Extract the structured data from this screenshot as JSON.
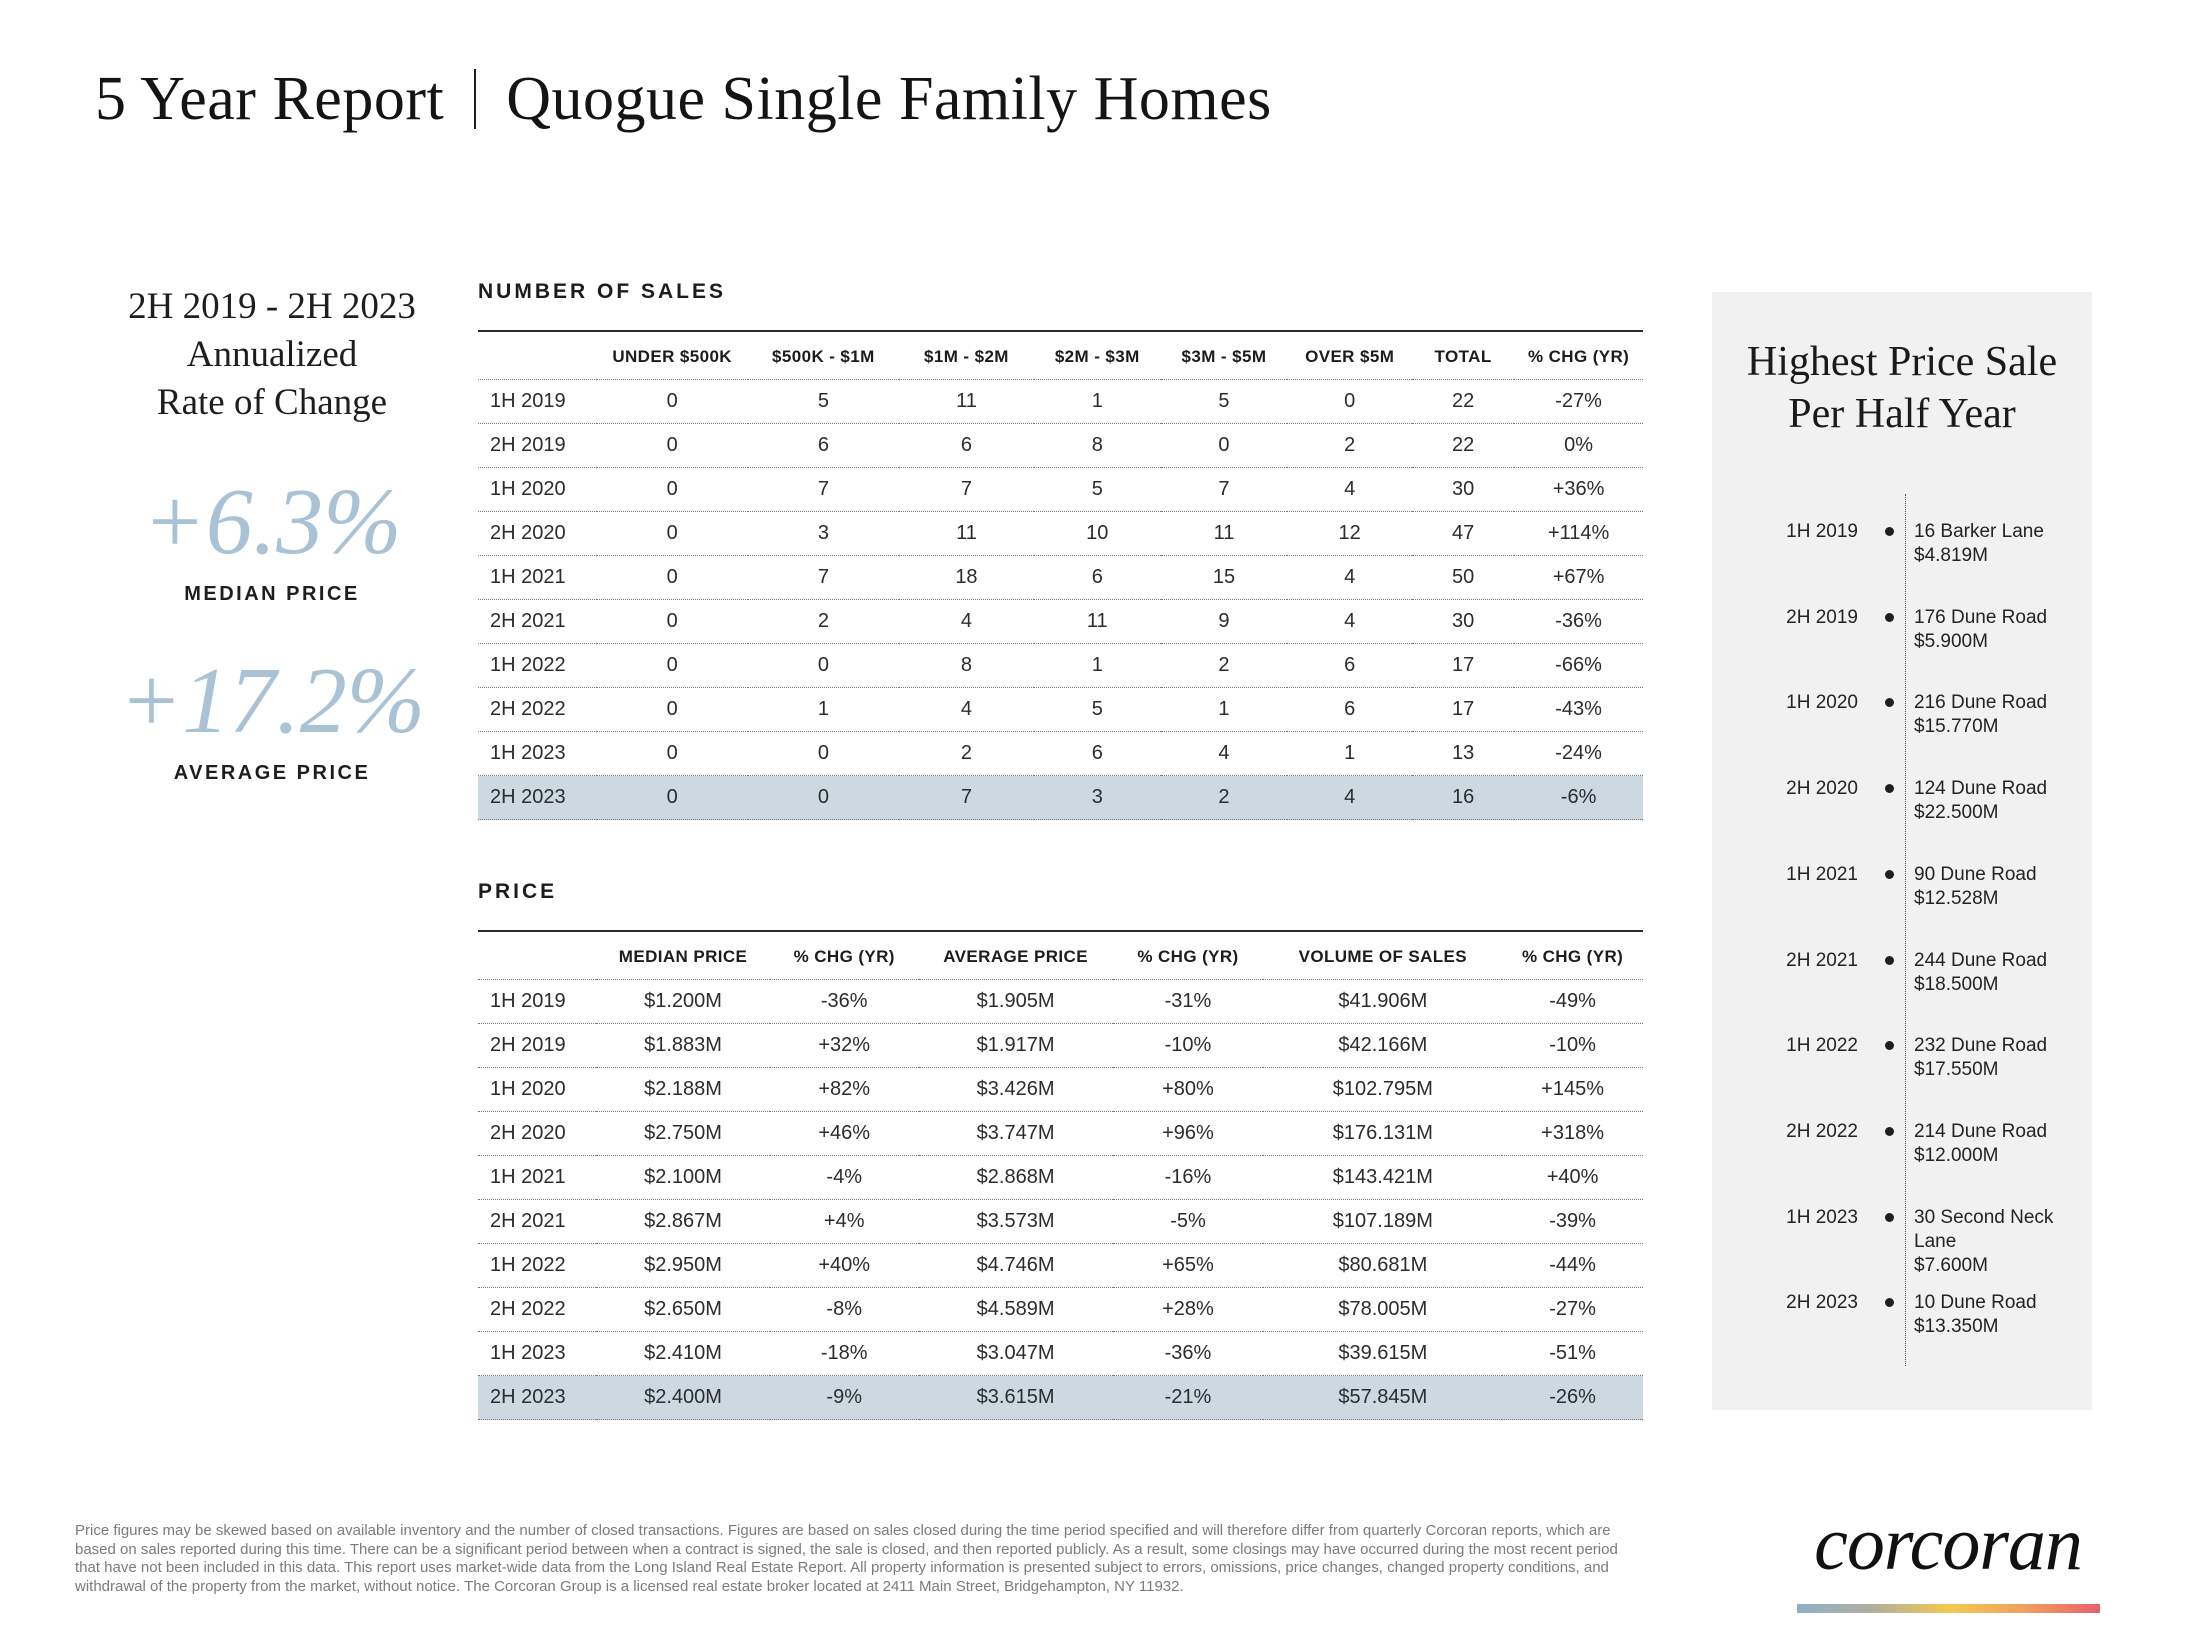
{
  "title": {
    "left": "5 Year Report",
    "right": "Quogue Single Family Homes"
  },
  "left_panel": {
    "period_range": "2H 2019 - 2H 2023",
    "heading_line2": "Annualized",
    "heading_line3": "Rate of Change",
    "median": {
      "value": "+6.3%",
      "label": "MEDIAN PRICE"
    },
    "average": {
      "value": "+17.2%",
      "label": "AVERAGE PRICE"
    }
  },
  "sales_table": {
    "section_label": "NUMBER OF SALES",
    "columns": [
      "UNDER $500K",
      "$500K - $1M",
      "$1M - $2M",
      "$2M - $3M",
      "$3M - $5M",
      "OVER $5M",
      "TOTAL",
      "% CHG (YR)"
    ],
    "rows": [
      {
        "period": "1H 2019",
        "values": [
          "0",
          "5",
          "11",
          "1",
          "5",
          "0",
          "22",
          "-27%"
        ],
        "highlight": false
      },
      {
        "period": "2H 2019",
        "values": [
          "0",
          "6",
          "6",
          "8",
          "0",
          "2",
          "22",
          "0%"
        ],
        "highlight": false
      },
      {
        "period": "1H 2020",
        "values": [
          "0",
          "7",
          "7",
          "5",
          "7",
          "4",
          "30",
          "+36%"
        ],
        "highlight": false
      },
      {
        "period": "2H 2020",
        "values": [
          "0",
          "3",
          "11",
          "10",
          "11",
          "12",
          "47",
          "+114%"
        ],
        "highlight": false
      },
      {
        "period": "1H 2021",
        "values": [
          "0",
          "7",
          "18",
          "6",
          "15",
          "4",
          "50",
          "+67%"
        ],
        "highlight": false
      },
      {
        "period": "2H 2021",
        "values": [
          "0",
          "2",
          "4",
          "11",
          "9",
          "4",
          "30",
          "-36%"
        ],
        "highlight": false
      },
      {
        "period": "1H 2022",
        "values": [
          "0",
          "0",
          "8",
          "1",
          "2",
          "6",
          "17",
          "-66%"
        ],
        "highlight": false
      },
      {
        "period": "2H 2022",
        "values": [
          "0",
          "1",
          "4",
          "5",
          "1",
          "6",
          "17",
          "-43%"
        ],
        "highlight": false
      },
      {
        "period": "1H 2023",
        "values": [
          "0",
          "0",
          "2",
          "6",
          "4",
          "1",
          "13",
          "-24%"
        ],
        "highlight": false
      },
      {
        "period": "2H 2023",
        "values": [
          "0",
          "0",
          "7",
          "3",
          "2",
          "4",
          "16",
          "-6%"
        ],
        "highlight": true
      }
    ]
  },
  "price_table": {
    "section_label": "PRICE",
    "columns": [
      "MEDIAN PRICE",
      "% CHG (YR)",
      "AVERAGE PRICE",
      "% CHG (YR)",
      "VOLUME OF SALES",
      "% CHG (YR)"
    ],
    "rows": [
      {
        "period": "1H 2019",
        "values": [
          "$1.200M",
          "-36%",
          "$1.905M",
          "-31%",
          "$41.906M",
          "-49%"
        ],
        "highlight": false
      },
      {
        "period": "2H 2019",
        "values": [
          "$1.883M",
          "+32%",
          "$1.917M",
          "-10%",
          "$42.166M",
          "-10%"
        ],
        "highlight": false
      },
      {
        "period": "1H 2020",
        "values": [
          "$2.188M",
          "+82%",
          "$3.426M",
          "+80%",
          "$102.795M",
          "+145%"
        ],
        "highlight": false
      },
      {
        "period": "2H 2020",
        "values": [
          "$2.750M",
          "+46%",
          "$3.747M",
          "+96%",
          "$176.131M",
          "+318%"
        ],
        "highlight": false
      },
      {
        "period": "1H 2021",
        "values": [
          "$2.100M",
          "-4%",
          "$2.868M",
          "-16%",
          "$143.421M",
          "+40%"
        ],
        "highlight": false
      },
      {
        "period": "2H 2021",
        "values": [
          "$2.867M",
          "+4%",
          "$3.573M",
          "-5%",
          "$107.189M",
          "-39%"
        ],
        "highlight": false
      },
      {
        "period": "1H 2022",
        "values": [
          "$2.950M",
          "+40%",
          "$4.746M",
          "+65%",
          "$80.681M",
          "-44%"
        ],
        "highlight": false
      },
      {
        "period": "2H 2022",
        "values": [
          "$2.650M",
          "-8%",
          "$4.589M",
          "+28%",
          "$78.005M",
          "-27%"
        ],
        "highlight": false
      },
      {
        "period": "1H 2023",
        "values": [
          "$2.410M",
          "-18%",
          "$3.047M",
          "-36%",
          "$39.615M",
          "-51%"
        ],
        "highlight": false
      },
      {
        "period": "2H 2023",
        "values": [
          "$2.400M",
          "-9%",
          "$3.615M",
          "-21%",
          "$57.845M",
          "-26%"
        ],
        "highlight": true
      }
    ]
  },
  "highest_sales": {
    "title_line1": "Highest Price Sale",
    "title_line2": "Per Half Year",
    "entries": [
      {
        "period": "1H 2019",
        "address": "16 Barker Lane",
        "price": "$4.819M"
      },
      {
        "period": "2H 2019",
        "address": "176 Dune Road",
        "price": "$5.900M"
      },
      {
        "period": "1H 2020",
        "address": "216 Dune Road",
        "price": "$15.770M"
      },
      {
        "period": "2H 2020",
        "address": "124 Dune Road",
        "price": "$22.500M"
      },
      {
        "period": "1H 2021",
        "address": "90 Dune Road",
        "price": "$12.528M"
      },
      {
        "period": "2H 2021",
        "address": "244 Dune Road",
        "price": "$18.500M"
      },
      {
        "period": "1H 2022",
        "address": "232 Dune Road",
        "price": "$17.550M"
      },
      {
        "period": "2H 2022",
        "address": "214 Dune Road",
        "price": "$12.000M"
      },
      {
        "period": "1H 2023",
        "address": "30 Second Neck Lane",
        "price": "$7.600M"
      },
      {
        "period": "2H 2023",
        "address": "10 Dune Road",
        "price": "$13.350M"
      }
    ]
  },
  "footer": {
    "disclaimer": "Price figures may be skewed based on available inventory and the number of closed transactions. Figures are based on sales closed during the time period specified and will therefore differ from quarterly Corcoran reports, which are based on sales reported during this time. There can be a significant period between when a contract is signed, the sale is closed, and then reported publicly. As a result, some closings may have occurred during the most recent period that have not been included in this data. This report uses market-wide data from the Long Island Real Estate Report. All property information is presented subject to errors, omissions, price changes, changed property conditions, and withdrawal of the property from the market, without notice. The Corcoran Group is a licensed real estate broker located at 2411 Main Street, Bridgehampton, NY 11932.",
    "logo_text": "corcoran"
  },
  "colors": {
    "accent_blue": "#a9c2d5",
    "highlight_row": "#ccd9e1",
    "panel_bg": "#f1f1f2",
    "logo_gradient": [
      "#8fb0c9",
      "#b3ae9d",
      "#f2ca51",
      "#f0a05f",
      "#e8606b"
    ]
  }
}
